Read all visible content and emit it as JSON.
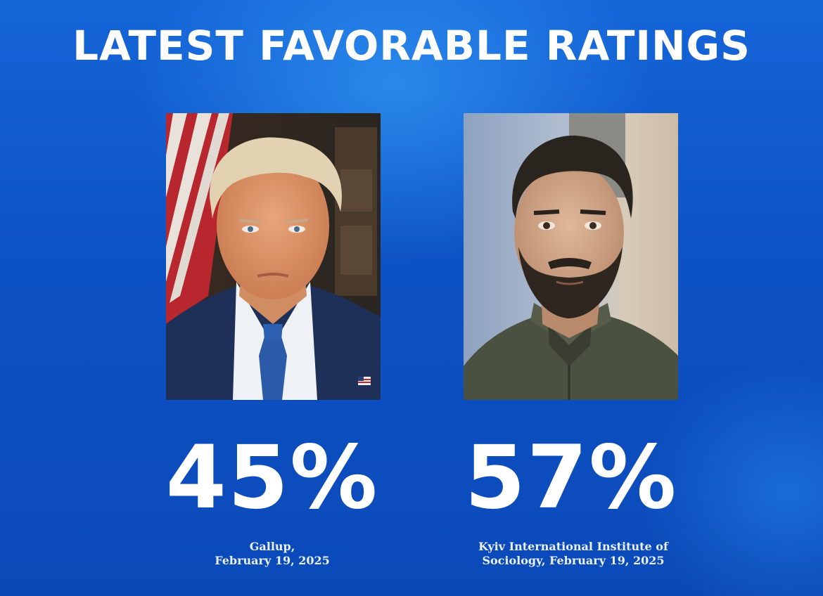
{
  "headline": "LATEST FAVORABLE RATINGS",
  "left_panel": {
    "image": "portrait-man-in-blue-suit-with-flag",
    "percent": "45%",
    "source_line1": "Gallup,",
    "source_line2": "February 19, 2025"
  },
  "right_panel": {
    "image": "portrait-bearded-man-in-olive-jacket",
    "percent": "57%",
    "source_line1": "Kyiv International Institute of",
    "source_line2": "Sociology, February 19, 2025"
  },
  "colors": {
    "background": "#0d52c4",
    "text": "#ffffff"
  }
}
